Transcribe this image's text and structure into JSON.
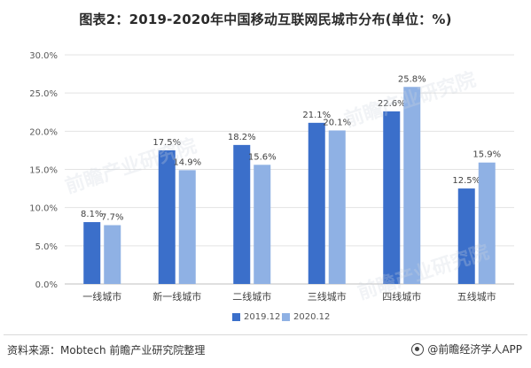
{
  "title": "图表2：2019-2020年中国移动互联网民城市分布(单位：%)",
  "source": "资料来源：Mobtech 前瞻产业研究院整理",
  "brand": "@前瞻经济学人APP",
  "watermark": "前瞻产业研究院",
  "colors": {
    "series_2019": "#3b6fca",
    "series_2020": "#8fb1e4",
    "axis": "#bfbfbf",
    "grid": "#e3e3e3",
    "tick_text": "#595959"
  },
  "chart_data": {
    "type": "bar",
    "title": "图表2：2019-2020年中国移动互联网民城市分布(单位：%)",
    "categories": [
      "一线城市",
      "新一线城市",
      "二线城市",
      "三线城市",
      "四线城市",
      "五线城市"
    ],
    "series": [
      {
        "name": "2019.12",
        "values": [
          8.1,
          17.5,
          18.2,
          21.1,
          22.6,
          12.5
        ],
        "labels": [
          "8.1%",
          "17.5%",
          "18.2%",
          "21.1%",
          "22.6%",
          "12.5%"
        ]
      },
      {
        "name": "2020.12",
        "values": [
          7.7,
          14.9,
          15.6,
          20.1,
          25.8,
          15.9
        ],
        "labels": [
          "7.7%",
          "14.9%",
          "15.6%",
          "20.1%",
          "25.8%",
          "15.9%"
        ]
      }
    ],
    "ylim": [
      0,
      30
    ],
    "yticks": [
      0,
      5,
      10,
      15,
      20,
      25,
      30
    ],
    "ytick_labels": [
      "0.0%",
      "5.0%",
      "10.0%",
      "15.0%",
      "20.0%",
      "25.0%",
      "30.0%"
    ],
    "xlabel": "",
    "ylabel": "",
    "grid": true,
    "legend": "bottom"
  }
}
